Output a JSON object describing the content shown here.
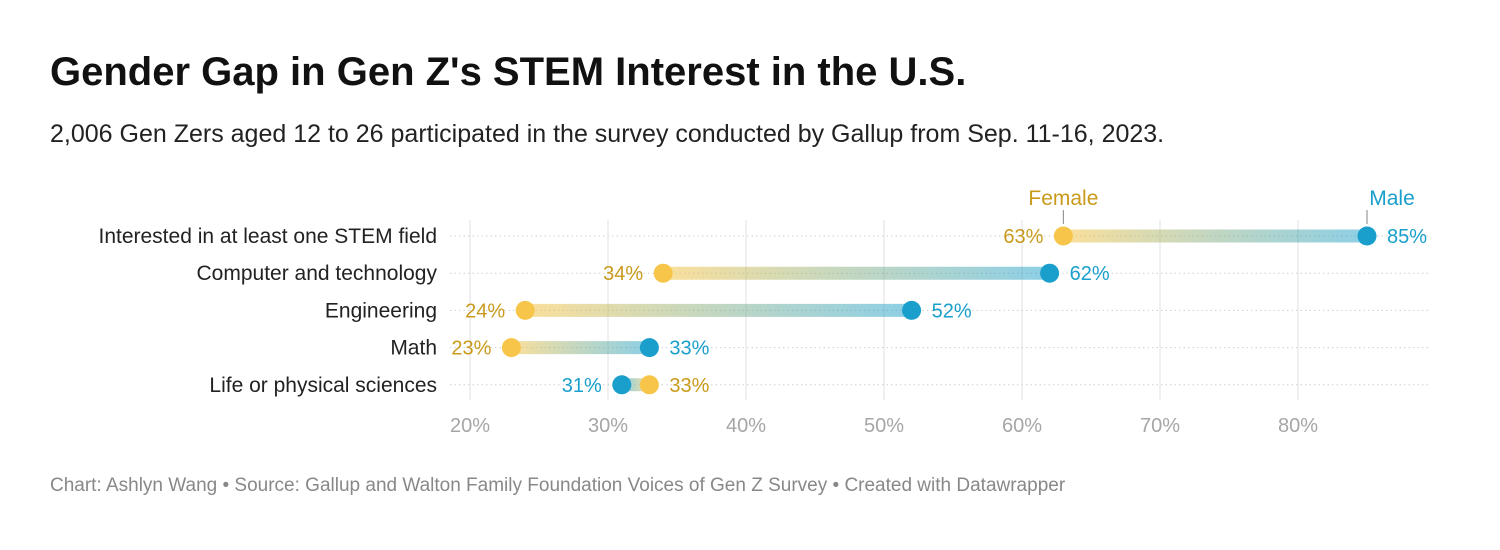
{
  "title": "Gender Gap in Gen Z's STEM Interest in the U.S.",
  "subtitle": "2,006 Gen Zers aged 12 to 26 participated in the survey conducted by Gallup from Sep. 11-16, 2023.",
  "footer": "Chart: Ashlyn Wang • Source: Gallup and Walton Family Foundation Voices of Gen Z Survey • Created with Datawrapper",
  "colors": {
    "female": "#f7c549",
    "female_text": "#c99a1b",
    "male": "#1a9fcc"
  },
  "chart_data": {
    "type": "dot-range",
    "categories": [
      "Interested in at least one STEM field",
      "Computer and technology",
      "Engineering",
      "Math",
      "Life or physical sciences"
    ],
    "series": [
      {
        "name": "Female",
        "values": [
          63,
          34,
          24,
          23,
          33
        ]
      },
      {
        "name": "Male",
        "values": [
          85,
          62,
          52,
          33,
          31
        ]
      }
    ],
    "value_labels": {
      "female": [
        "63%",
        "34%",
        "24%",
        "23%",
        "33%"
      ],
      "male": [
        "85%",
        "62%",
        "52%",
        "33%",
        "31%"
      ]
    },
    "xlim": [
      17,
      92
    ],
    "ticks": [
      20,
      30,
      40,
      50,
      60,
      70,
      80
    ],
    "tick_labels": [
      "20%",
      "30%",
      "40%",
      "50%",
      "60%",
      "70%",
      "80%"
    ],
    "legend": {
      "female": "Female",
      "male": "Male"
    }
  }
}
